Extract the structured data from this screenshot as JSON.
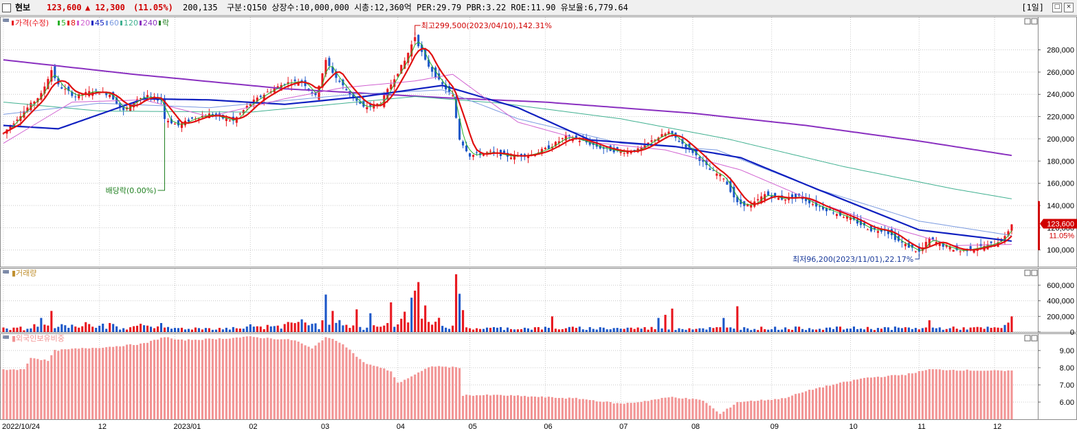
{
  "header": {
    "name": "현보",
    "price": "123,600",
    "change_symbol": "▲",
    "change": "12,300",
    "change_rate": "(11.05%)",
    "volume": "200,135",
    "info": "구분:Q150 상장수:10,000,000 시총:12,360억 PER:29.79 PBR:3.22 ROE:11.90 유보율:6,779.64",
    "period": "[1일]",
    "buttons": [
      "□",
      "×"
    ]
  },
  "colors": {
    "up": "#e8141c",
    "down": "#1b56c8",
    "ma5": "#26b026",
    "ma8": "#e01010",
    "ma20": "#d060d0",
    "ma45": "#1020c0",
    "ma60": "#7a9ae0",
    "ma120": "#40b090",
    "ma240": "#8a30c0",
    "foreign": "#f29494",
    "grid": "#c8c8c8"
  },
  "chart_data": [
    {
      "type": "candlestick",
      "title": "가격(수정)",
      "legend": [
        {
          "label": "가격(수정)",
          "color": "#e8141c"
        },
        {
          "label": "5",
          "color": "#26b026"
        },
        {
          "label": "8",
          "color": "#e01010"
        },
        {
          "label": "20",
          "color": "#d060d0"
        },
        {
          "label": "45",
          "color": "#1020c0"
        },
        {
          "label": "60",
          "color": "#7a9ae0"
        },
        {
          "label": "120",
          "color": "#40b090"
        },
        {
          "label": "240",
          "color": "#8a30c0"
        },
        {
          "label": "락",
          "color": "#208020"
        }
      ],
      "ylim": [
        85000,
        310000
      ],
      "yticks": [
        "280,000",
        "260,000",
        "240,000",
        "220,000",
        "200,000",
        "180,000",
        "160,000",
        "140,000",
        "120,000",
        "100,000"
      ],
      "ytick_values": [
        280000,
        260000,
        240000,
        220000,
        200000,
        180000,
        160000,
        140000,
        120000,
        100000
      ],
      "x_start": "2022-10-24",
      "x_end": "2023-12-08",
      "x_ticks": [
        {
          "date": "2022-10-24",
          "label": "2022/10/24"
        },
        {
          "date": "2022-12-01",
          "label": "12"
        },
        {
          "date": "2023-01-02",
          "label": "2023/01"
        },
        {
          "date": "2023-02-01",
          "label": "02"
        },
        {
          "date": "2023-03-02",
          "label": "03"
        },
        {
          "date": "2023-04-03",
          "label": "04"
        },
        {
          "date": "2023-05-02",
          "label": "05"
        },
        {
          "date": "2023-06-01",
          "label": "06"
        },
        {
          "date": "2023-07-03",
          "label": "07"
        },
        {
          "date": "2023-08-01",
          "label": "08"
        },
        {
          "date": "2023-09-01",
          "label": "09"
        },
        {
          "date": "2023-10-04",
          "label": "10"
        },
        {
          "date": "2023-11-01",
          "label": "11"
        },
        {
          "date": "2023-12-01",
          "label": "12"
        }
      ],
      "close_path": [
        [
          "2022-10-24",
          205000
        ],
        [
          "2022-11-01",
          225000
        ],
        [
          "2022-11-08",
          240000
        ],
        [
          "2022-11-11",
          262000
        ],
        [
          "2022-11-15",
          248000
        ],
        [
          "2022-11-22",
          238000
        ],
        [
          "2022-11-29",
          243000
        ],
        [
          "2022-12-06",
          240000
        ],
        [
          "2022-12-12",
          225000
        ],
        [
          "2022-12-16",
          236000
        ],
        [
          "2022-12-21",
          238000
        ],
        [
          "2022-12-27",
          235000
        ],
        [
          "2022-12-28",
          218000
        ],
        [
          "2023-01-03",
          212000
        ],
        [
          "2023-01-09",
          218000
        ],
        [
          "2023-01-16",
          222000
        ],
        [
          "2023-01-25",
          216000
        ],
        [
          "2023-02-01",
          232000
        ],
        [
          "2023-02-08",
          242000
        ],
        [
          "2023-02-15",
          250000
        ],
        [
          "2023-02-22",
          252000
        ],
        [
          "2023-02-28",
          238000
        ],
        [
          "2023-03-03",
          270000
        ],
        [
          "2023-03-08",
          255000
        ],
        [
          "2023-03-14",
          240000
        ],
        [
          "2023-03-20",
          228000
        ],
        [
          "2023-03-27",
          232000
        ],
        [
          "2023-03-31",
          255000
        ],
        [
          "2023-04-05",
          270000
        ],
        [
          "2023-04-10",
          292000
        ],
        [
          "2023-04-13",
          270000
        ],
        [
          "2023-04-19",
          252000
        ],
        [
          "2023-04-25",
          238000
        ],
        [
          "2023-04-27",
          200000
        ],
        [
          "2023-05-02",
          185000
        ],
        [
          "2023-05-10",
          188000
        ],
        [
          "2023-05-18",
          184000
        ],
        [
          "2023-05-26",
          186000
        ],
        [
          "2023-06-02",
          192000
        ],
        [
          "2023-06-09",
          202000
        ],
        [
          "2023-06-16",
          198000
        ],
        [
          "2023-06-23",
          192000
        ],
        [
          "2023-07-03",
          188000
        ],
        [
          "2023-07-10",
          190000
        ],
        [
          "2023-07-17",
          200000
        ],
        [
          "2023-07-21",
          206000
        ],
        [
          "2023-07-26",
          198000
        ],
        [
          "2023-08-01",
          188000
        ],
        [
          "2023-08-08",
          172000
        ],
        [
          "2023-08-14",
          165000
        ],
        [
          "2023-08-18",
          142000
        ],
        [
          "2023-08-24",
          140000
        ],
        [
          "2023-08-30",
          150000
        ],
        [
          "2023-09-06",
          146000
        ],
        [
          "2023-09-13",
          148000
        ],
        [
          "2023-09-20",
          140000
        ],
        [
          "2023-10-04",
          128000
        ],
        [
          "2023-10-12",
          118000
        ],
        [
          "2023-10-18",
          118000
        ],
        [
          "2023-10-24",
          108000
        ],
        [
          "2023-11-01",
          98000
        ],
        [
          "2023-11-06",
          110000
        ],
        [
          "2023-11-10",
          104000
        ],
        [
          "2023-11-17",
          99000
        ],
        [
          "2023-11-24",
          102000
        ],
        [
          "2023-12-01",
          106000
        ],
        [
          "2023-12-06",
          111300
        ],
        [
          "2023-12-08",
          123600
        ]
      ],
      "ma": [
        {
          "name": "240",
          "values": [
            [
              "2022-10-24",
              271000
            ],
            [
              "2022-12-15",
              258000
            ],
            [
              "2023-02-15",
              245000
            ],
            [
              "2023-04-20",
              237000
            ],
            [
              "2023-06-01",
              233000
            ],
            [
              "2023-08-01",
              223000
            ],
            [
              "2023-09-15",
              212000
            ],
            [
              "2023-11-01",
              198000
            ],
            [
              "2023-12-08",
              185000
            ]
          ]
        },
        {
          "name": "120",
          "values": [
            [
              "2022-10-24",
              233000
            ],
            [
              "2022-12-01",
              225000
            ],
            [
              "2023-02-01",
              224000
            ],
            [
              "2023-04-10",
              238000
            ],
            [
              "2023-05-15",
              232000
            ],
            [
              "2023-07-01",
              218000
            ],
            [
              "2023-08-15",
              200000
            ],
            [
              "2023-10-01",
              175000
            ],
            [
              "2023-11-15",
              155000
            ],
            [
              "2023-12-08",
              146000
            ]
          ]
        },
        {
          "name": "60",
          "values": [
            [
              "2022-10-24",
              222000
            ],
            [
              "2022-12-01",
              232000
            ],
            [
              "2023-01-15",
              228000
            ],
            [
              "2023-03-15",
              240000
            ],
            [
              "2023-04-20",
              244000
            ],
            [
              "2023-05-20",
              218000
            ],
            [
              "2023-07-01",
              196000
            ],
            [
              "2023-08-10",
              190000
            ],
            [
              "2023-09-20",
              155000
            ],
            [
              "2023-11-01",
              126000
            ],
            [
              "2023-12-08",
              113000
            ]
          ]
        },
        {
          "name": "45",
          "values": [
            [
              "2022-10-24",
              212000
            ],
            [
              "2022-11-15",
              209000
            ],
            [
              "2022-12-20",
              236000
            ],
            [
              "2023-01-15",
              235000
            ],
            [
              "2023-02-15",
              231000
            ],
            [
              "2023-03-20",
              238000
            ],
            [
              "2023-04-20",
              248000
            ],
            [
              "2023-05-20",
              228000
            ],
            [
              "2023-06-20",
              199000
            ],
            [
              "2023-07-25",
              193000
            ],
            [
              "2023-08-20",
              183000
            ],
            [
              "2023-09-20",
              155000
            ],
            [
              "2023-11-01",
              118000
            ],
            [
              "2023-12-08",
              108000
            ]
          ]
        },
        {
          "name": "20",
          "values": [
            [
              "2022-10-24",
              196000
            ],
            [
              "2022-11-20",
              233000
            ],
            [
              "2022-12-20",
              235000
            ],
            [
              "2023-01-15",
              220000
            ],
            [
              "2023-02-15",
              236000
            ],
            [
              "2023-03-10",
              246000
            ],
            [
              "2023-04-10",
              252000
            ],
            [
              "2023-04-25",
              258000
            ],
            [
              "2023-05-20",
              215000
            ],
            [
              "2023-06-20",
              197000
            ],
            [
              "2023-07-20",
              190000
            ],
            [
              "2023-08-20",
              172000
            ],
            [
              "2023-09-20",
              143000
            ],
            [
              "2023-10-20",
              120000
            ],
            [
              "2023-11-15",
              104000
            ],
            [
              "2023-12-08",
              105000
            ]
          ]
        }
      ],
      "annotations": [
        {
          "text": "최고299,500(2023/04/10),142.31%",
          "date": "2023-04-10",
          "value": 299500,
          "color": "#d00000"
        },
        {
          "text": "최저96,200(2023/11/01),22.17%",
          "date": "2023-11-01",
          "value": 96200,
          "color": "#1a3a9a"
        },
        {
          "text": "배당락(0.00%)",
          "date": "2022-12-28",
          "value": 218000,
          "color": "#208020"
        }
      ],
      "last_price_label": "123,600",
      "last_rate_label": "11.05%"
    },
    {
      "type": "bar",
      "title": "거래량",
      "ylim": [
        0,
        820000
      ],
      "yticks": [
        "600,000",
        "400,000",
        "200,000",
        "0"
      ],
      "ytick_values": [
        600000,
        400000,
        200000,
        0
      ],
      "peaks": [
        [
          "2022-11-01",
          22000
        ],
        [
          "2022-11-08",
          180000
        ],
        [
          "2022-11-11",
          270000
        ],
        [
          "2022-12-16",
          80000
        ],
        [
          "2023-03-03",
          480000
        ],
        [
          "2023-03-07",
          270000
        ],
        [
          "2023-03-16",
          290000
        ],
        [
          "2023-03-22",
          240000
        ],
        [
          "2023-03-30",
          380000
        ],
        [
          "2023-04-05",
          260000
        ],
        [
          "2023-04-07",
          440000
        ],
        [
          "2023-04-10",
          530000
        ],
        [
          "2023-04-11",
          640000
        ],
        [
          "2023-04-13",
          340000
        ],
        [
          "2023-04-26",
          740000
        ],
        [
          "2023-04-27",
          490000
        ],
        [
          "2023-04-28",
          280000
        ],
        [
          "2023-06-05",
          200000
        ],
        [
          "2023-07-18",
          180000
        ],
        [
          "2023-07-20",
          220000
        ],
        [
          "2023-07-24",
          300000
        ],
        [
          "2023-08-14",
          180000
        ],
        [
          "2023-08-18",
          330000
        ],
        [
          "2023-11-06",
          150000
        ],
        [
          "2023-12-06",
          90000
        ],
        [
          "2023-12-07",
          120000
        ],
        [
          "2023-12-08",
          200135
        ]
      ]
    },
    {
      "type": "bar",
      "title": "외국인보유비중",
      "ylim": [
        5.0,
        10.0
      ],
      "yticks": [
        "9.00",
        "8.00",
        "7.00",
        "6.00"
      ],
      "ytick_values": [
        9.0,
        8.0,
        7.0,
        6.0
      ],
      "series_path": [
        [
          "2022-10-24",
          7.9
        ],
        [
          "2022-11-01",
          7.9
        ],
        [
          "2022-11-03",
          8.6
        ],
        [
          "2022-11-10",
          8.4
        ],
        [
          "2022-11-14",
          9.0
        ],
        [
          "2022-11-22",
          9.1
        ],
        [
          "2022-12-05",
          9.2
        ],
        [
          "2022-12-20",
          9.4
        ],
        [
          "2022-12-28",
          9.8
        ],
        [
          "2023-01-03",
          9.6
        ],
        [
          "2023-01-20",
          9.7
        ],
        [
          "2023-02-01",
          9.8
        ],
        [
          "2023-02-20",
          9.6
        ],
        [
          "2023-02-27",
          9.1
        ],
        [
          "2023-03-03",
          9.8
        ],
        [
          "2023-03-10",
          9.4
        ],
        [
          "2023-03-20",
          8.3
        ],
        [
          "2023-03-30",
          7.8
        ],
        [
          "2023-04-03",
          7.1
        ],
        [
          "2023-04-10",
          7.6
        ],
        [
          "2023-04-17",
          8.1
        ],
        [
          "2023-04-27",
          8.0
        ],
        [
          "2023-04-28",
          6.4
        ],
        [
          "2023-05-15",
          6.4
        ],
        [
          "2023-06-15",
          6.2
        ],
        [
          "2023-07-03",
          5.9
        ],
        [
          "2023-07-10",
          6.0
        ],
        [
          "2023-07-24",
          6.3
        ],
        [
          "2023-08-04",
          6.1
        ],
        [
          "2023-08-11",
          5.3
        ],
        [
          "2023-08-18",
          6.0
        ],
        [
          "2023-09-06",
          6.2
        ],
        [
          "2023-09-20",
          6.8
        ],
        [
          "2023-10-10",
          7.4
        ],
        [
          "2023-10-26",
          7.6
        ],
        [
          "2023-11-06",
          7.9
        ],
        [
          "2023-12-08",
          7.8
        ]
      ]
    }
  ]
}
